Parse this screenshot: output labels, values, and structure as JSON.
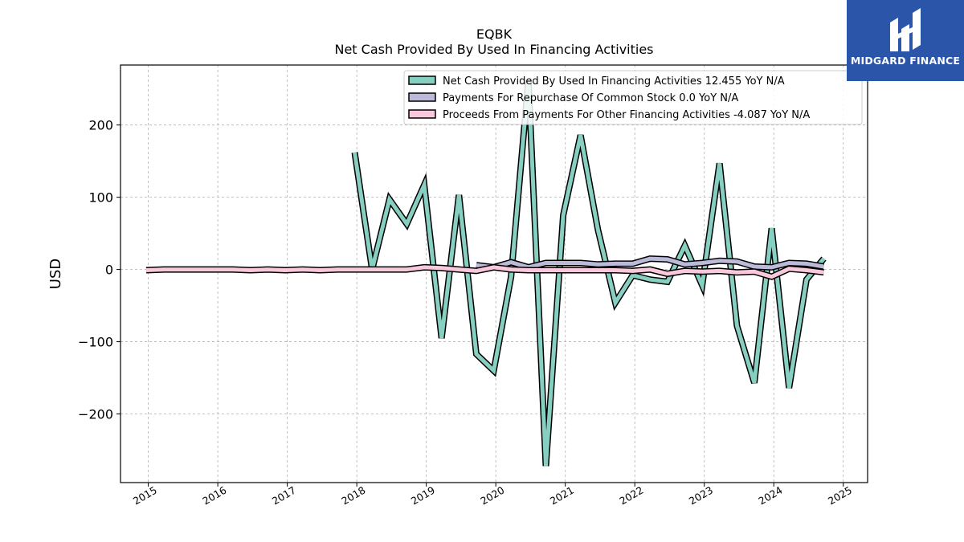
{
  "chart_data": {
    "type": "line",
    "title": "EQBK",
    "subtitle": "Net Cash Provided By Used In Financing Activities",
    "xlabel": "",
    "ylabel": "USD",
    "xlim": [
      2014.6,
      2025.35
    ],
    "ylim": [
      -295,
      283
    ],
    "x_ticks": [
      2015,
      2016,
      2017,
      2018,
      2019,
      2020,
      2021,
      2022,
      2023,
      2024,
      2025
    ],
    "x_tick_labels": [
      "2015",
      "2016",
      "2017",
      "2018",
      "2019",
      "2020",
      "2021",
      "2022",
      "2023",
      "2024",
      "2025"
    ],
    "y_ticks": [
      200,
      100,
      0,
      -100,
      -200
    ],
    "y_tick_labels": [
      "200",
      "100",
      "0",
      "−100",
      "−200"
    ],
    "grid": true,
    "legend_position": "top-right",
    "series": [
      {
        "name": "Net Cash Provided By Used In Financing Activities",
        "legend_label": "Net Cash Provided By Used In Financing Activities  12.455 YoY N/A",
        "color": "#86cfc1",
        "points": [
          [
            2017.97,
            162
          ],
          [
            2018.22,
            0
          ],
          [
            2018.47,
            97
          ],
          [
            2018.72,
            63
          ],
          [
            2018.97,
            117
          ],
          [
            2019.22,
            -95
          ],
          [
            2019.47,
            103
          ],
          [
            2019.72,
            -117
          ],
          [
            2019.97,
            -140
          ],
          [
            2020.22,
            -10
          ],
          [
            2020.47,
            262
          ],
          [
            2020.72,
            -272
          ],
          [
            2020.97,
            75
          ],
          [
            2021.22,
            186
          ],
          [
            2021.47,
            55
          ],
          [
            2021.72,
            -46
          ],
          [
            2021.97,
            -8
          ],
          [
            2022.22,
            -14
          ],
          [
            2022.47,
            -17
          ],
          [
            2022.72,
            33
          ],
          [
            2022.97,
            -22
          ],
          [
            2023.22,
            147
          ],
          [
            2023.47,
            -78
          ],
          [
            2023.72,
            -157
          ],
          [
            2023.97,
            57
          ],
          [
            2024.22,
            -164
          ],
          [
            2024.47,
            -14
          ],
          [
            2024.72,
            15
          ]
        ]
      },
      {
        "name": "Payments For Repurchase Of Common Stock",
        "legend_label": "Payments For Repurchase Of Common Stock  0.0 YoY N/A",
        "color": "#bcbad9",
        "points": [
          [
            2019.72,
            6
          ],
          [
            2019.97,
            3
          ],
          [
            2020.22,
            10
          ],
          [
            2020.47,
            3
          ],
          [
            2020.72,
            9
          ],
          [
            2020.97,
            9
          ],
          [
            2021.22,
            9
          ],
          [
            2021.47,
            7
          ],
          [
            2021.72,
            8
          ],
          [
            2021.97,
            8
          ],
          [
            2022.22,
            15
          ],
          [
            2022.47,
            14
          ],
          [
            2022.72,
            7
          ],
          [
            2022.97,
            9
          ],
          [
            2023.22,
            12
          ],
          [
            2023.47,
            11
          ],
          [
            2023.72,
            4
          ],
          [
            2023.97,
            3
          ],
          [
            2024.22,
            9
          ],
          [
            2024.47,
            8
          ],
          [
            2024.72,
            4
          ]
        ]
      },
      {
        "name": "Proceeds From Payments For Other Financing Activities",
        "legend_label": "Proceeds From Payments For Other Financing Activities  -4.087 YoY N/A",
        "color": "#f9c8dd",
        "points": [
          [
            2014.97,
            -1
          ],
          [
            2015.22,
            0
          ],
          [
            2015.47,
            0
          ],
          [
            2015.72,
            0
          ],
          [
            2015.97,
            0
          ],
          [
            2016.22,
            0
          ],
          [
            2016.47,
            -1
          ],
          [
            2016.72,
            0
          ],
          [
            2016.97,
            -1
          ],
          [
            2017.22,
            0
          ],
          [
            2017.47,
            -1
          ],
          [
            2017.72,
            0
          ],
          [
            2017.97,
            0
          ],
          [
            2018.22,
            0
          ],
          [
            2018.47,
            0
          ],
          [
            2018.72,
            0
          ],
          [
            2018.97,
            3
          ],
          [
            2019.22,
            2
          ],
          [
            2019.47,
            0
          ],
          [
            2019.72,
            -2
          ],
          [
            2019.97,
            3
          ],
          [
            2020.22,
            0
          ],
          [
            2020.47,
            -1
          ],
          [
            2020.72,
            -1
          ],
          [
            2020.97,
            -1
          ],
          [
            2021.22,
            -1
          ],
          [
            2021.47,
            -1
          ],
          [
            2021.72,
            -1
          ],
          [
            2021.97,
            -2
          ],
          [
            2022.22,
            0
          ],
          [
            2022.47,
            -6
          ],
          [
            2022.72,
            -2
          ],
          [
            2022.97,
            -3
          ],
          [
            2023.22,
            -2
          ],
          [
            2023.47,
            -4
          ],
          [
            2023.72,
            -3
          ],
          [
            2023.97,
            -10
          ],
          [
            2024.22,
            1
          ],
          [
            2024.47,
            -1
          ],
          [
            2024.72,
            -4
          ]
        ]
      }
    ]
  },
  "logo": {
    "text": "MIDGARD FINANCE",
    "background": "#2a55a8"
  }
}
